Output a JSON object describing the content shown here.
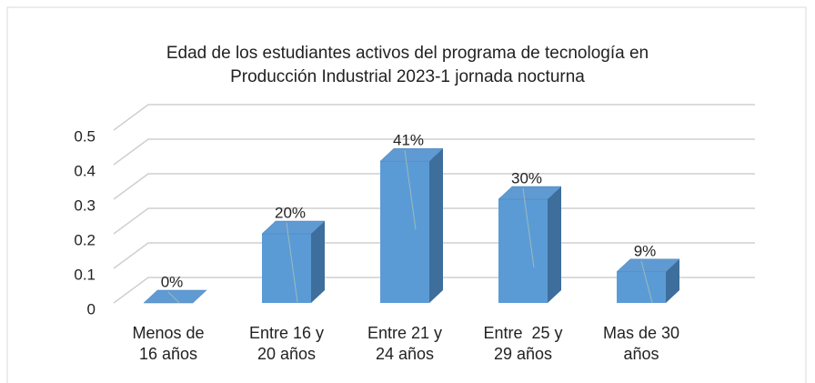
{
  "chart_data": {
    "type": "bar3d",
    "title": "Edad de los estudiantes activos del programa de tecnología en\nProducción Industrial 2023-1 jornada nocturna",
    "categories": [
      "Menos de\n16 años",
      "Entre 16 y\n20 años",
      "Entre 21 y\n24 años",
      "Entre  25 y\n29 años",
      "Mas de 30\naños"
    ],
    "values": [
      0,
      0.2,
      0.41,
      0.3,
      0.09
    ],
    "value_labels": [
      "0%",
      "20%",
      "41%",
      "30%",
      "9%"
    ],
    "color": "#5b9bd5",
    "ylim": [
      0,
      0.5
    ],
    "yticks": [
      0,
      0.1,
      0.2,
      0.3,
      0.4,
      0.5
    ],
    "grid": true
  }
}
